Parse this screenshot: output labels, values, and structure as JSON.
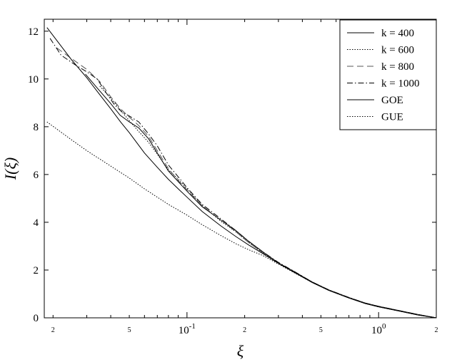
{
  "chart_data": {
    "type": "line",
    "title": "",
    "xlabel": "ξ",
    "ylabel": "I(ξ)",
    "xscale": "log",
    "xlim": [
      0.018,
      2.0
    ],
    "ylim": [
      0,
      12.5
    ],
    "grid": false,
    "legend_position": "top-right",
    "yticks": [
      0,
      2,
      4,
      6,
      8,
      10,
      12
    ],
    "ytick_labels": [
      "0",
      "2",
      "4",
      "6",
      "8",
      "10",
      "12"
    ],
    "xticks_major": [
      {
        "value": 0.1,
        "base": "10",
        "exp": "-1"
      },
      {
        "value": 1.0,
        "base": "10",
        "exp": "0"
      }
    ],
    "xticks_minor_labeled": [
      {
        "value": 0.02,
        "label": "2"
      },
      {
        "value": 0.05,
        "label": "5"
      },
      {
        "value": 0.2,
        "label": "2"
      },
      {
        "value": 0.5,
        "label": "5"
      },
      {
        "value": 2.0,
        "label": "2"
      }
    ],
    "series": [
      {
        "name": "k = 400",
        "style": "solid",
        "color": "#000000",
        "x": [
          0.0295,
          0.0346,
          0.0397,
          0.0448,
          0.05,
          0.056,
          0.063,
          0.07,
          0.08,
          0.09,
          0.1,
          0.12,
          0.15,
          0.18,
          0.21,
          0.25,
          0.3,
          0.36,
          0.45,
          0.55,
          0.7,
          0.85,
          1.0,
          1.3,
          1.6,
          2.0
        ],
        "y": [
          10.2,
          9.55,
          9.0,
          8.48,
          8.2,
          7.95,
          7.5,
          6.9,
          6.15,
          5.7,
          5.3,
          4.65,
          4.1,
          3.65,
          3.2,
          2.75,
          2.3,
          1.95,
          1.5,
          1.17,
          0.85,
          0.62,
          0.48,
          0.29,
          0.14,
          0.0
        ]
      },
      {
        "name": "k = 600",
        "style": "dotted",
        "color": "#000000",
        "x": [
          0.0351,
          0.04,
          0.045,
          0.05,
          0.056,
          0.063,
          0.07,
          0.08,
          0.09,
          0.1,
          0.12,
          0.15,
          0.18,
          0.21,
          0.25,
          0.3,
          0.36,
          0.45,
          0.55,
          0.7,
          0.85,
          1.0,
          1.3,
          1.6,
          2.0
        ],
        "y": [
          9.7,
          9.2,
          8.7,
          8.25,
          7.8,
          7.35,
          6.85,
          6.2,
          5.8,
          5.4,
          4.7,
          4.05,
          3.6,
          3.15,
          2.7,
          2.3,
          1.92,
          1.48,
          1.15,
          0.83,
          0.6,
          0.47,
          0.28,
          0.13,
          0.0
        ]
      },
      {
        "name": "k = 800",
        "style": "dashed",
        "color": "#555555",
        "x": [
          0.0209,
          0.025,
          0.03,
          0.035,
          0.04,
          0.045,
          0.05,
          0.056,
          0.063,
          0.07,
          0.08,
          0.09,
          0.1,
          0.12,
          0.15,
          0.18,
          0.21,
          0.25,
          0.3,
          0.36,
          0.45,
          0.55,
          0.7,
          0.85,
          1.0,
          1.3,
          1.6,
          2.0
        ],
        "y": [
          11.3,
          10.85,
          10.4,
          9.9,
          9.25,
          8.75,
          8.4,
          8.05,
          7.6,
          7.0,
          6.25,
          5.75,
          5.35,
          4.7,
          4.1,
          3.6,
          3.15,
          2.72,
          2.3,
          1.95,
          1.48,
          1.16,
          0.84,
          0.61,
          0.47,
          0.28,
          0.13,
          0.0
        ]
      },
      {
        "name": "k = 1000",
        "style": "dashdot",
        "color": "#000000",
        "x": [
          0.0193,
          0.022,
          0.026,
          0.03,
          0.034,
          0.038,
          0.042,
          0.046,
          0.05,
          0.056,
          0.063,
          0.07,
          0.08,
          0.09,
          0.1,
          0.12,
          0.15,
          0.18,
          0.21,
          0.25,
          0.3,
          0.36,
          0.45,
          0.55,
          0.7,
          0.85,
          1.0,
          1.3,
          1.6,
          2.0
        ],
        "y": [
          11.7,
          11.0,
          10.6,
          10.3,
          10.0,
          9.4,
          8.9,
          8.6,
          8.45,
          8.2,
          7.7,
          7.2,
          6.4,
          5.9,
          5.45,
          4.75,
          4.15,
          3.65,
          3.2,
          2.75,
          2.32,
          1.96,
          1.5,
          1.17,
          0.85,
          0.62,
          0.48,
          0.29,
          0.14,
          0.0
        ]
      },
      {
        "name": "GOE",
        "style": "solid",
        "color": "#000000",
        "x": [
          0.0186,
          0.025,
          0.03,
          0.035,
          0.04,
          0.045,
          0.05,
          0.06,
          0.07,
          0.08,
          0.09,
          0.1,
          0.12,
          0.15,
          0.18,
          0.21,
          0.25,
          0.3,
          0.36,
          0.45,
          0.55,
          0.7,
          0.85,
          1.0,
          1.3,
          1.6,
          2.0
        ],
        "y": [
          12.15,
          10.8,
          10.05,
          9.35,
          8.75,
          8.2,
          7.75,
          6.9,
          6.3,
          5.8,
          5.4,
          5.05,
          4.45,
          3.85,
          3.4,
          3.05,
          2.68,
          2.28,
          1.92,
          1.48,
          1.15,
          0.83,
          0.6,
          0.46,
          0.27,
          0.12,
          0.0
        ]
      },
      {
        "name": "GUE",
        "style": "dotted",
        "color": "#000000",
        "x": [
          0.0186,
          0.025,
          0.03,
          0.04,
          0.05,
          0.06,
          0.07,
          0.08,
          0.1,
          0.12,
          0.15,
          0.18,
          0.21,
          0.25,
          0.3,
          0.36,
          0.45,
          0.55,
          0.7,
          0.85,
          1.0,
          1.3,
          1.6,
          2.0
        ],
        "y": [
          8.2,
          7.45,
          7.0,
          6.35,
          5.85,
          5.4,
          5.05,
          4.75,
          4.3,
          3.9,
          3.45,
          3.1,
          2.85,
          2.6,
          2.25,
          1.9,
          1.48,
          1.15,
          0.83,
          0.6,
          0.46,
          0.27,
          0.12,
          0.0
        ]
      }
    ]
  }
}
